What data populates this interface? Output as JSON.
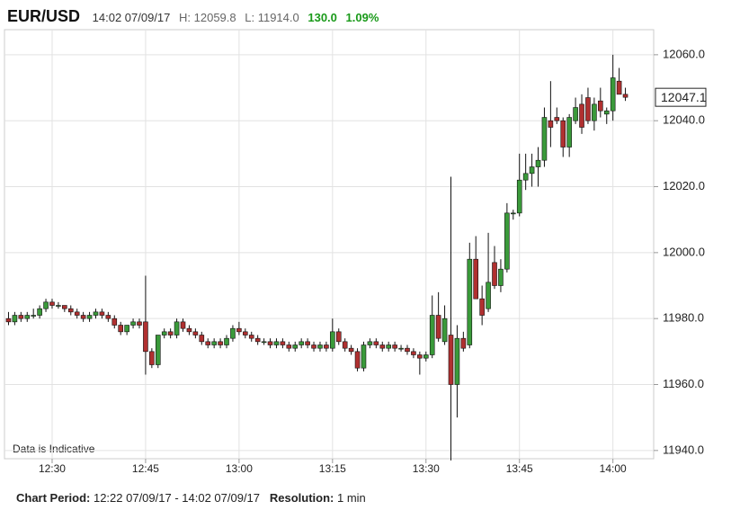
{
  "header": {
    "symbol": "EUR/USD",
    "time": "14:02 07/09/17",
    "high": "H: 12059.8",
    "low": "L: 11914.0",
    "change": "130.0",
    "change_pct": "1.09%"
  },
  "footer": {
    "period_label": "Chart Period:",
    "period": "12:22 07/09/17 - 14:02 07/09/17",
    "resolution_label": "Resolution:",
    "resolution": "1 min"
  },
  "chart_data": {
    "type": "candlestick",
    "annotation": "Data is Indicative",
    "last_price": 12047.1,
    "up_color": "#3a9a3a",
    "down_color": "#b03030",
    "grid": true,
    "ylim": [
      11937.5,
      12067.6
    ],
    "yticks": [
      {
        "value": 11940,
        "label": "11940.0"
      },
      {
        "value": 11960,
        "label": "11960.0"
      },
      {
        "value": 11980,
        "label": "11980.0"
      },
      {
        "value": 12000,
        "label": "12000.0"
      },
      {
        "value": 12020,
        "label": "12020.0"
      },
      {
        "value": 12040,
        "label": "12040.0"
      },
      {
        "value": 12060,
        "label": "12060.0"
      }
    ],
    "categories": [
      null,
      null,
      null,
      null,
      null,
      null,
      null,
      "12:30",
      null,
      null,
      null,
      null,
      null,
      null,
      null,
      null,
      null,
      null,
      null,
      null,
      null,
      null,
      "12:45",
      null,
      null,
      null,
      null,
      null,
      null,
      null,
      null,
      null,
      null,
      null,
      null,
      null,
      null,
      "13:00",
      null,
      null,
      null,
      null,
      null,
      null,
      null,
      null,
      null,
      null,
      null,
      null,
      null,
      null,
      "13:15",
      null,
      null,
      null,
      null,
      null,
      null,
      null,
      null,
      null,
      null,
      null,
      null,
      null,
      null,
      "13:30",
      null,
      null,
      null,
      null,
      null,
      null,
      null,
      null,
      null,
      null,
      null,
      null,
      null,
      null,
      "13:45",
      null,
      null,
      null,
      null,
      null,
      null,
      null,
      null,
      null,
      null,
      null,
      null,
      null,
      null,
      "14:00",
      null,
      null
    ],
    "ohlc": [
      [
        11980,
        11982,
        11978,
        11979
      ],
      [
        11979,
        11982,
        11978,
        11981
      ],
      [
        11981,
        11982,
        11979,
        11980
      ],
      [
        11980,
        11982,
        11979,
        11981
      ],
      [
        11981,
        11983,
        11980,
        11981
      ],
      [
        11981,
        11984,
        11980,
        11983
      ],
      [
        11983,
        11986,
        11982,
        11985
      ],
      [
        11985,
        11986,
        11983,
        11984
      ],
      [
        11984,
        11985,
        11983,
        11984
      ],
      [
        11984,
        11984,
        11982,
        11983
      ],
      [
        11983,
        11984,
        11981,
        11982
      ],
      [
        11982,
        11983,
        11980,
        11981
      ],
      [
        11981,
        11982,
        11979,
        11980
      ],
      [
        11980,
        11982,
        11979,
        11981
      ],
      [
        11981,
        11983,
        11980,
        11982
      ],
      [
        11982,
        11983,
        11980,
        11981
      ],
      [
        11981,
        11982,
        11979,
        11980
      ],
      [
        11980,
        11981,
        11977,
        11978
      ],
      [
        11978,
        11979,
        11975,
        11976
      ],
      [
        11976,
        11978,
        11975,
        11978
      ],
      [
        11978,
        11980,
        11977,
        11979
      ],
      [
        11979,
        11980,
        11977,
        11978
      ],
      [
        11979,
        11993,
        11963,
        11970
      ],
      [
        11970,
        11971,
        11965,
        11966
      ],
      [
        11966,
        11975,
        11965,
        11975
      ],
      [
        11975,
        11977,
        11974,
        11976
      ],
      [
        11976,
        11977,
        11974,
        11975
      ],
      [
        11975,
        11980,
        11974,
        11979
      ],
      [
        11979,
        11980,
        11976,
        11977
      ],
      [
        11977,
        11978,
        11975,
        11976
      ],
      [
        11976,
        11977,
        11974,
        11975
      ],
      [
        11975,
        11976,
        11972,
        11973
      ],
      [
        11973,
        11974,
        11971,
        11972
      ],
      [
        11972,
        11974,
        11971,
        11973
      ],
      [
        11973,
        11974,
        11971,
        11972
      ],
      [
        11972,
        11975,
        11971,
        11974
      ],
      [
        11974,
        11978,
        11973,
        11977
      ],
      [
        11977,
        11979,
        11975,
        11976
      ],
      [
        11976,
        11977,
        11974,
        11975
      ],
      [
        11975,
        11976,
        11973,
        11974
      ],
      [
        11974,
        11975,
        11972,
        11973
      ],
      [
        11973,
        11974,
        11972,
        11973
      ],
      [
        11973,
        11974,
        11971,
        11972
      ],
      [
        11972,
        11974,
        11971,
        11973
      ],
      [
        11973,
        11974,
        11971,
        11972
      ],
      [
        11972,
        11973,
        11970,
        11971
      ],
      [
        11971,
        11973,
        11970,
        11972
      ],
      [
        11972,
        11974,
        11971,
        11973
      ],
      [
        11973,
        11974,
        11971,
        11972
      ],
      [
        11972,
        11973,
        11970,
        11971
      ],
      [
        11971,
        11973,
        11970,
        11972
      ],
      [
        11972,
        11973,
        11970,
        11971
      ],
      [
        11971,
        11980,
        11970,
        11976
      ],
      [
        11976,
        11977,
        11972,
        11973
      ],
      [
        11973,
        11974,
        11970,
        11971
      ],
      [
        11971,
        11972,
        11969,
        11970
      ],
      [
        11970,
        11971,
        11964,
        11965
      ],
      [
        11965,
        11973,
        11964,
        11972
      ],
      [
        11972,
        11974,
        11971,
        11973
      ],
      [
        11973,
        11974,
        11971,
        11972
      ],
      [
        11972,
        11973,
        11970,
        11971
      ],
      [
        11971,
        11973,
        11970,
        11972
      ],
      [
        11972,
        11973,
        11970,
        11971
      ],
      [
        11971,
        11972,
        11970,
        11971
      ],
      [
        11971,
        11972,
        11969,
        11970
      ],
      [
        11970,
        11971,
        11968,
        11969
      ],
      [
        11969,
        11970,
        11963,
        11968
      ],
      [
        11968,
        11970,
        11967,
        11969
      ],
      [
        11969,
        11987,
        11968,
        11981
      ],
      [
        11981,
        11988,
        11973,
        11974
      ],
      [
        11973,
        11984,
        11972,
        11980
      ],
      [
        11975,
        12023,
        11937,
        11960
      ],
      [
        11960,
        11978,
        11950,
        11974
      ],
      [
        11974,
        11976,
        11970,
        11971
      ],
      [
        11972,
        12003,
        11971,
        11998
      ],
      [
        11998,
        12005,
        11986,
        11986
      ],
      [
        11986,
        11990,
        11978,
        11981
      ],
      [
        11983,
        12006,
        11982,
        11991
      ],
      [
        11997,
        12002,
        11989,
        11990
      ],
      [
        11990,
        11998,
        11988,
        11995
      ],
      [
        11995,
        12015,
        11994,
        12012
      ],
      [
        12012,
        12013,
        12010,
        12012
      ],
      [
        12012,
        12030,
        12011,
        12022
      ],
      [
        12022,
        12030,
        12019,
        12024
      ],
      [
        12024,
        12030,
        12020,
        12026
      ],
      [
        12026,
        12032,
        12020,
        12028
      ],
      [
        12028,
        12044,
        12026,
        12041
      ],
      [
        12040,
        12052,
        12032,
        12038
      ],
      [
        12041,
        12044,
        12039,
        12040
      ],
      [
        12040,
        12041,
        12029,
        12032
      ],
      [
        12032,
        12042,
        12029,
        12041
      ],
      [
        12040,
        12047,
        12039,
        12044
      ],
      [
        12045,
        12048,
        12036,
        12038
      ],
      [
        12047,
        12050,
        12039,
        12040
      ],
      [
        12040,
        12047,
        12037,
        12045
      ],
      [
        12046,
        12050,
        12041,
        12043
      ],
      [
        12042,
        12044,
        12039,
        12043
      ],
      [
        12043,
        12060,
        12040,
        12053
      ],
      [
        12052,
        12056,
        12048,
        12048
      ],
      [
        12048,
        12050,
        12046,
        12047.1
      ]
    ]
  }
}
